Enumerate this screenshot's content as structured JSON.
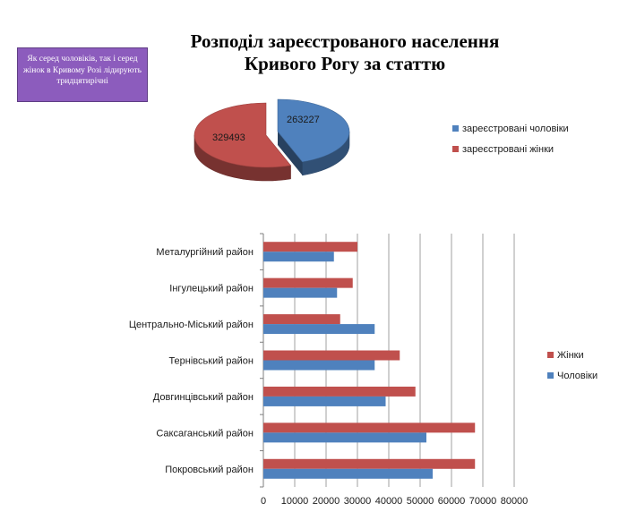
{
  "note_text": "Як серед  чоловіків, так і серед  жінок  в Кривому Розі лідирують тридцятирічні",
  "title_lines": [
    "Розподіл зареєстрованого населення",
    "Кривого Рогу за статтю"
  ],
  "colors": {
    "blue": "#4f81bd",
    "red": "#c0504d",
    "note_bg": "#8c5cbd",
    "grid": "#8a8a8a"
  },
  "chart_data": [
    {
      "type": "pie",
      "title": "Розподіл зареєстрованого населення Кривого Рогу за статтю",
      "categories": [
        "зареєстровані чоловіки",
        "зареєстровані жінки"
      ],
      "values": [
        263227,
        329493
      ],
      "data_labels": [
        "263227",
        "329493"
      ],
      "legend_position": "right",
      "exploded": true,
      "three_d": true
    },
    {
      "type": "bar",
      "orientation": "horizontal",
      "categories": [
        "Покровський район",
        "Саксаганський район",
        "Довгинцівський район",
        "Тернівський район",
        "Центрально-Міський район",
        "Інгулецький район",
        "Металургійний район"
      ],
      "series": [
        {
          "name": "Чоловіки",
          "values": [
            54000,
            52000,
            39000,
            35500,
            35500,
            23500,
            22500
          ]
        },
        {
          "name": "Жінки",
          "values": [
            67500,
            67500,
            48500,
            43500,
            24500,
            28500,
            30000
          ]
        }
      ],
      "xlim": [
        0,
        80000
      ],
      "x_ticks": [
        0,
        10000,
        20000,
        30000,
        40000,
        50000,
        60000,
        70000,
        80000
      ],
      "x_tick_labels": [
        "0",
        "10000",
        "20000",
        "30000",
        "40000",
        "50000",
        "60000",
        "70000",
        "80000"
      ],
      "grid": true,
      "legend_position": "right"
    }
  ]
}
